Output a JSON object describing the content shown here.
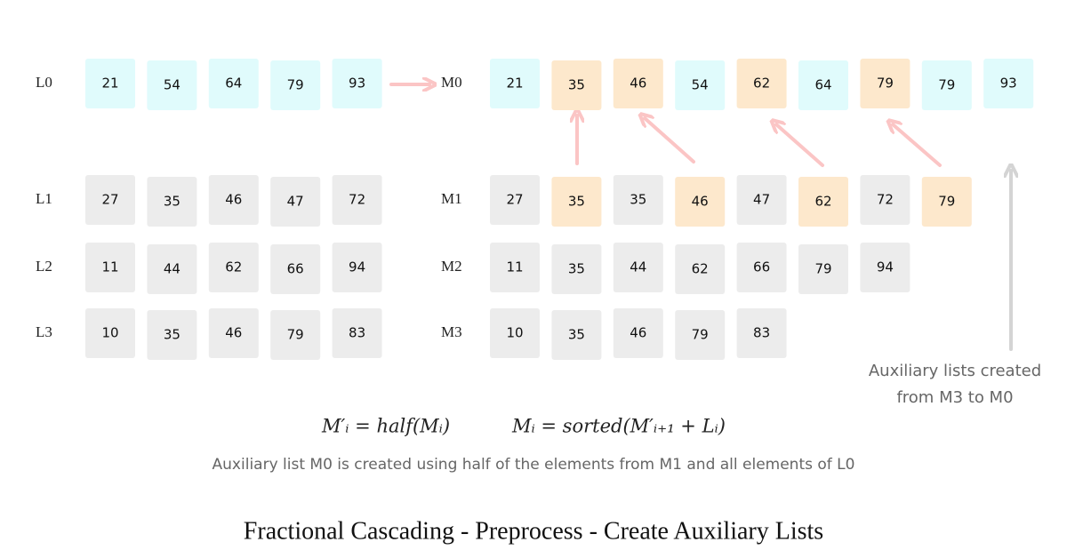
{
  "left": [
    {
      "label": "L0",
      "items": [
        "21",
        "54",
        "64",
        "79",
        "93"
      ],
      "fills": [
        "#e0fbfc",
        "#e0fbfc",
        "#e0fbfc",
        "#e0fbfc",
        "#e0fbfc"
      ]
    },
    {
      "label": "L1",
      "items": [
        "27",
        "35",
        "46",
        "47",
        "72"
      ],
      "fills": [
        "#ececec",
        "#ececec",
        "#ececec",
        "#ececec",
        "#ececec"
      ]
    },
    {
      "label": "L2",
      "items": [
        "11",
        "44",
        "62",
        "66",
        "94"
      ],
      "fills": [
        "#ececec",
        "#ececec",
        "#ececec",
        "#ececec",
        "#ececec"
      ]
    },
    {
      "label": "L3",
      "items": [
        "10",
        "35",
        "46",
        "79",
        "83"
      ],
      "fills": [
        "#ececec",
        "#ececec",
        "#ececec",
        "#ececec",
        "#ececec"
      ]
    }
  ],
  "right": [
    {
      "label": "M0",
      "items": [
        "21",
        "35",
        "46",
        "54",
        "62",
        "64",
        "79",
        "79",
        "93"
      ],
      "fills": [
        "#e0fbfc",
        "#fde8cc",
        "#fde8cc",
        "#e0fbfc",
        "#fde8cc",
        "#e0fbfc",
        "#fde8cc",
        "#e0fbfc",
        "#e0fbfc"
      ]
    },
    {
      "label": "M1",
      "items": [
        "27",
        "35",
        "35",
        "46",
        "47",
        "62",
        "72",
        "79"
      ],
      "fills": [
        "#ececec",
        "#fde8cc",
        "#ececec",
        "#fde8cc",
        "#ececec",
        "#fde8cc",
        "#ececec",
        "#fde8cc"
      ]
    },
    {
      "label": "M2",
      "items": [
        "11",
        "35",
        "44",
        "62",
        "66",
        "79",
        "94"
      ],
      "fills": [
        "#ececec",
        "#ececec",
        "#ececec",
        "#ececec",
        "#ececec",
        "#ececec",
        "#ececec"
      ]
    },
    {
      "label": "M3",
      "items": [
        "10",
        "35",
        "46",
        "79",
        "83"
      ],
      "fills": [
        "#ececec",
        "#ececec",
        "#ececec",
        "#ececec",
        "#ececec"
      ]
    }
  ],
  "side_note": [
    "Auxiliary lists created",
    "from M3 to M0"
  ],
  "formulas": [
    "M′ᵢ = half(Mᵢ)",
    "Mᵢ = sorted(M′ᵢ₊₁ + Lᵢ)"
  ],
  "caption": "Auxiliary list M0 is created using half of the elements from M1 and all elements of L0",
  "title": "Fractional Cascading - Preprocess - Create Auxiliary Lists"
}
